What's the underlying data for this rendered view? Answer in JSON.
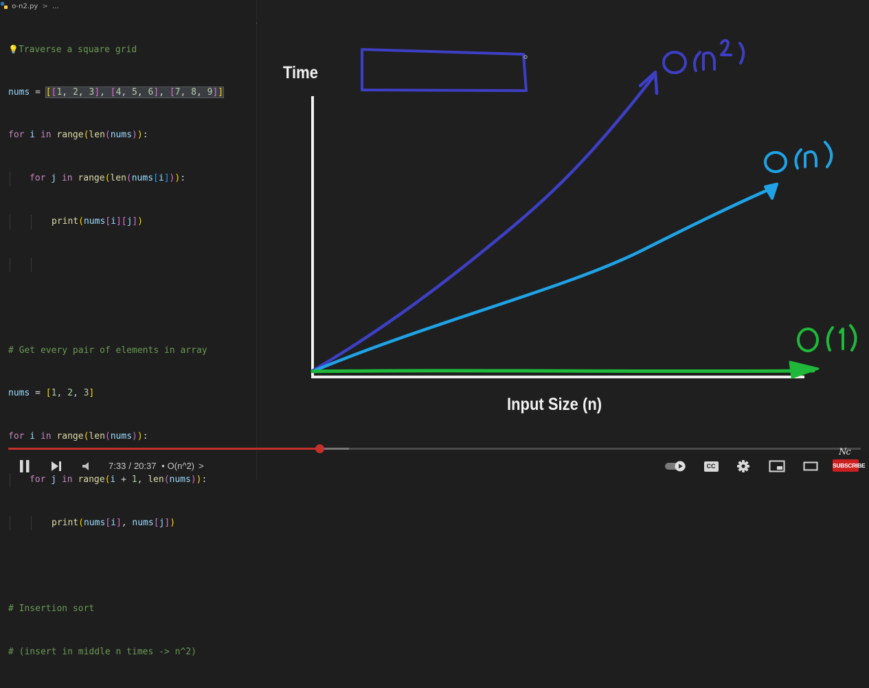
{
  "breadcrumb": {
    "file": "o-n2.py",
    "sep": ">",
    "rest": "..."
  },
  "code": {
    "l1_comment": "Traverse a square grid",
    "l2_var": "nums",
    "l2_eq": " = ",
    "l2_a": "[",
    "l2_b": "[",
    "l2_n1": "1",
    "l2_c1": ", ",
    "l2_n2": "2",
    "l2_c2": ", ",
    "l2_n3": "3",
    "l2_d": "]",
    "l2_e": ", ",
    "l2_f": "[",
    "l2_n4": "4",
    "l2_c3": ", ",
    "l2_n5": "5",
    "l2_c4": ", ",
    "l2_n6": "6",
    "l2_g": "]",
    "l2_h": ", ",
    "l2_i": "[",
    "l2_n7": "7",
    "l2_c5": ", ",
    "l2_n8": "8",
    "l2_c6": ", ",
    "l2_n9": "9",
    "l2_j": "]",
    "l2_k": "]",
    "l3_for": "for",
    "l3_i": " i ",
    "l3_in": "in",
    "l3_range": " range",
    "l3_p1": "(",
    "l3_len": "len",
    "l3_p2": "(",
    "l3_nums": "nums",
    "l3_p3": ")",
    "l3_p4": ")",
    "l3_colon": ":",
    "l4_for": "for",
    "l4_j": " j ",
    "l4_in": "in",
    "l4_range": " range",
    "l4_p1": "(",
    "l4_len": "len",
    "l4_p2": "(",
    "l4_nums": "nums",
    "l4_b1": "[",
    "l4_i": "i",
    "l4_b2": "]",
    "l4_p3": ")",
    "l4_p4": ")",
    "l4_colon": ":",
    "l5_print": "print",
    "l5_p1": "(",
    "l5_nums": "nums",
    "l5_b1": "[",
    "l5_i": "i",
    "l5_b2": "]",
    "l5_b3": "[",
    "l5_j": "j",
    "l5_b4": "]",
    "l5_p2": ")",
    "l8_comment": "# Get every pair of elements in array",
    "l9_var": "nums",
    "l9_eq": " = ",
    "l9_b1": "[",
    "l9_n1": "1",
    "l9_c1": ", ",
    "l9_n2": "2",
    "l9_c2": ", ",
    "l9_n3": "3",
    "l9_b2": "]",
    "l10_for": "for",
    "l10_i": " i ",
    "l10_in": "in",
    "l10_range": " range",
    "l10_p1": "(",
    "l10_len": "len",
    "l10_p2": "(",
    "l10_nums": "nums",
    "l10_p3": ")",
    "l10_p4": ")",
    "l10_colon": ":",
    "l11_for": "for",
    "l11_j": " j ",
    "l11_in": "in",
    "l11_range": " range",
    "l11_p1": "(",
    "l11_i": "i",
    "l11_plus": " + ",
    "l11_one": "1",
    "l11_comma": ", ",
    "l11_len": "len",
    "l11_p2": "(",
    "l11_nums": "nums",
    "l11_p3": ")",
    "l11_p4": ")",
    "l11_colon": ":",
    "l12_print": "print",
    "l12_p1": "(",
    "l12_nums": "nums",
    "l12_b1": "[",
    "l12_i": "i",
    "l12_b2": "]",
    "l12_comma": ", ",
    "l12_nums2": "nums",
    "l12_b3": "[",
    "l12_j": "j",
    "l12_b4": "]",
    "l12_p2": ")",
    "l14_comment": "# Insertion sort",
    "l15_comment": "# (insert in middle n times -> n^2)"
  },
  "board": {
    "y_axis_label": "Time",
    "x_axis_label": "Input Size (n)",
    "curves": [
      {
        "label": "O(n²)",
        "color": "#3d3fc4"
      },
      {
        "label": "O(n)",
        "color": "#1fa3e6"
      },
      {
        "label": "O(1)",
        "color": "#1fb83a"
      }
    ],
    "box_color": "#3d3fc4"
  },
  "player": {
    "time_current": "7:33",
    "time_sep": "/",
    "time_total": "20:37",
    "chapter_bullet": "•",
    "chapter": "O(n^2)",
    "chapter_chevron": ">",
    "progress_fraction": 0.365,
    "icons": [
      "pause-icon",
      "next-icon",
      "volume-icon",
      "autoplay-toggle-icon",
      "captions-icon",
      "settings-gear-icon",
      "miniplayer-icon",
      "theater-mode-icon"
    ],
    "captions_label": "CC",
    "brand": "Nc",
    "subscribe_label": "SUBSCRIBE"
  }
}
